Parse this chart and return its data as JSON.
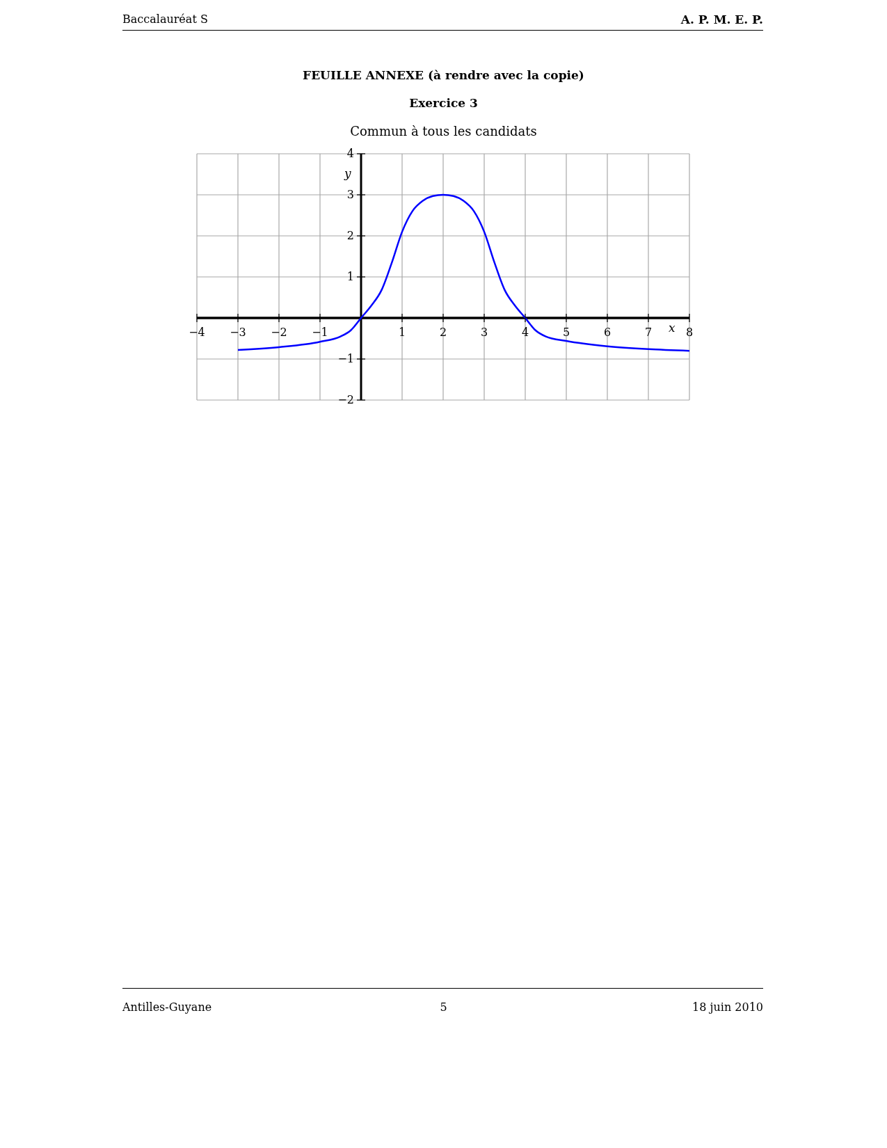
{
  "chart_data": {
    "type": "line",
    "title": "FEUILLE ANNEXE (à rendre avec la copie)",
    "subtitle": "Exercice 3",
    "xlabel": "x",
    "ylabel": "y",
    "annotations": [
      "Baccalauréat S",
      "A. P. M. E. P.",
      "Commun à tous les candidats",
      "Antilles-Guyane",
      "5",
      "18 juin 2010"
    ],
    "x": [
      -3,
      -2,
      -1,
      -0.5,
      -0.25,
      0,
      0.25,
      0.5,
      0.75,
      1,
      1.25,
      1.5,
      1.75,
      2,
      2.25,
      2.5,
      2.75,
      3,
      3.25,
      3.5,
      3.75,
      4,
      4.25,
      4.5,
      5,
      6,
      7,
      8
    ],
    "series": [
      {
        "color": "#0000ff",
        "values": [
          -0.78,
          -0.71,
          -0.58,
          -0.45,
          -0.3,
          0,
          0.3,
          0.68,
          1.35,
          2.1,
          2.6,
          2.85,
          2.97,
          3,
          2.97,
          2.85,
          2.6,
          2.1,
          1.35,
          0.68,
          0.3,
          0,
          -0.3,
          -0.45,
          -0.56,
          -0.69,
          -0.76,
          -0.8
        ]
      }
    ],
    "xlim": [
      -4,
      8
    ],
    "ylim": [
      -2,
      4
    ],
    "xticks": [
      {
        "value": -4,
        "label": "−4"
      },
      {
        "value": -3,
        "label": "−3"
      },
      {
        "value": -2,
        "label": "−2"
      },
      {
        "value": -1,
        "label": "−1"
      },
      1,
      2,
      3,
      4,
      5,
      6,
      7,
      8
    ],
    "yticks": [
      {
        "value": -2,
        "label": "−2"
      },
      {
        "value": -1,
        "label": "−1"
      },
      1,
      2,
      3,
      4
    ],
    "grid": true,
    "marker": "none",
    "line_style": "solid"
  }
}
